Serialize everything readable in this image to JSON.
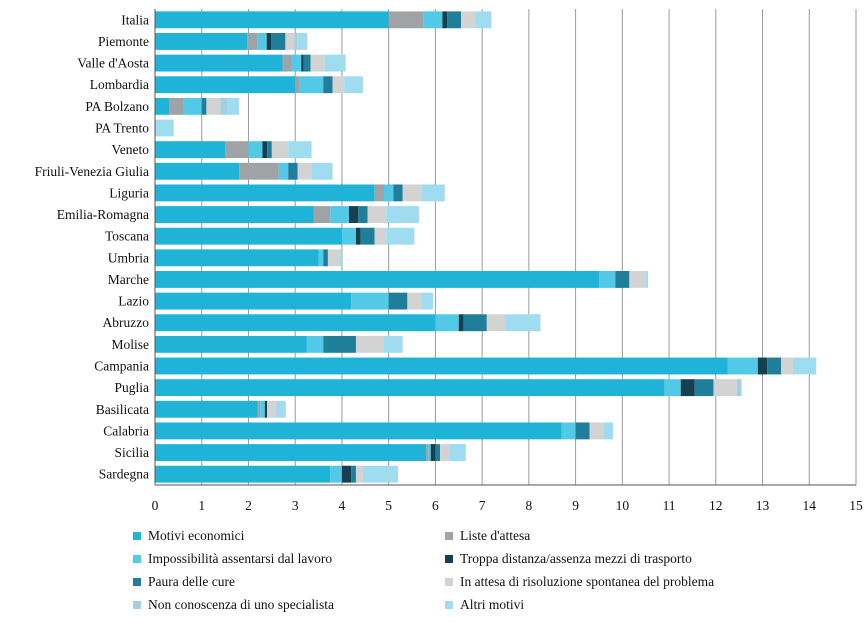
{
  "chart_data": {
    "type": "bar",
    "orientation": "horizontal",
    "stacked": true,
    "xlim": [
      0,
      15
    ],
    "x_ticks": [
      "0",
      "1",
      "2",
      "3",
      "4",
      "5",
      "6",
      "7",
      "8",
      "9",
      "10",
      "11",
      "12",
      "13",
      "14",
      "15"
    ],
    "grid": "vertical",
    "legend_position": "bottom",
    "categories": [
      "Italia",
      "Piemonte",
      "Valle d'Aosta",
      "Lombardia",
      "PA Bolzano",
      "PA Trento",
      "Veneto",
      "Friuli-Venezia Giulia",
      "Liguria",
      "Emilia-Romagna",
      "Toscana",
      "Umbria",
      "Marche",
      "Lazio",
      "Abruzzo",
      "Molise",
      "Campania",
      "Puglia",
      "Basilicata",
      "Calabria",
      "Sicilia",
      "Sardegna"
    ],
    "series": [
      {
        "name": "Motivi economici",
        "color": "#1fb3d8",
        "values": [
          5.0,
          1.97,
          2.73,
          3.0,
          0.3,
          0,
          1.5,
          1.8,
          4.7,
          3.4,
          4.0,
          3.5,
          9.5,
          4.2,
          6.0,
          3.25,
          12.25,
          10.9,
          2.2,
          8.7,
          5.8,
          3.75
        ]
      },
      {
        "name": "Liste d'attesa",
        "color": "#a0a3a6",
        "values": [
          0.75,
          0.22,
          0.2,
          0.1,
          0.3,
          0,
          0.5,
          0.85,
          0.2,
          0.35,
          0,
          0,
          0,
          0,
          0,
          0,
          0,
          0,
          0.05,
          0,
          0.05,
          0
        ]
      },
      {
        "name": "Impossibilità assentarsi dal lavoro",
        "color": "#52c9e6",
        "values": [
          0.4,
          0.2,
          0.2,
          0.5,
          0.4,
          0,
          0.3,
          0.2,
          0.2,
          0.4,
          0.3,
          0.1,
          0.35,
          0.8,
          0.5,
          0.35,
          0.65,
          0.35,
          0.1,
          0.3,
          0.05,
          0.25
        ]
      },
      {
        "name": "Troppa distanza/assenza mezzi di trasporto",
        "color": "#163f4f",
        "values": [
          0.1,
          0.1,
          0.05,
          0,
          0,
          0,
          0.1,
          0,
          0,
          0.2,
          0.1,
          0,
          0,
          0,
          0.1,
          0,
          0.2,
          0.3,
          0.05,
          0,
          0.1,
          0.2
        ]
      },
      {
        "name": "Paura delle cure",
        "color": "#1f7f9b",
        "values": [
          0.3,
          0.3,
          0.15,
          0.2,
          0.1,
          0,
          0.1,
          0.2,
          0.2,
          0.2,
          0.3,
          0.1,
          0.3,
          0.4,
          0.5,
          0.7,
          0.3,
          0.4,
          0,
          0.3,
          0.1,
          0.1
        ]
      },
      {
        "name": "In attesa di risoluzione spontanea del problema",
        "color": "#d3d3d3",
        "values": [
          0.3,
          0.2,
          0.3,
          0.25,
          0.3,
          0,
          0.35,
          0.3,
          0.4,
          0.4,
          0.25,
          0.25,
          0.35,
          0.3,
          0.4,
          0.6,
          0.25,
          0.5,
          0.2,
          0.3,
          0.2,
          0.15
        ]
      },
      {
        "name": "Non conoscenza di uno specialista",
        "color": "#a4cfe3",
        "values": [
          0,
          0.05,
          0,
          0,
          0.15,
          0,
          0,
          0,
          0,
          0,
          0,
          0,
          0,
          0,
          0,
          0,
          0,
          0.1,
          0,
          0,
          0,
          0
        ]
      },
      {
        "name": "Altri motivi",
        "color": "#9fdcef",
        "values": [
          0.35,
          0.22,
          0.45,
          0.4,
          0.25,
          0.4,
          0.5,
          0.45,
          0.5,
          0.7,
          0.6,
          0.05,
          0.05,
          0.25,
          0.75,
          0.4,
          0.5,
          0,
          0.2,
          0.2,
          0.35,
          0.75
        ]
      }
    ]
  }
}
